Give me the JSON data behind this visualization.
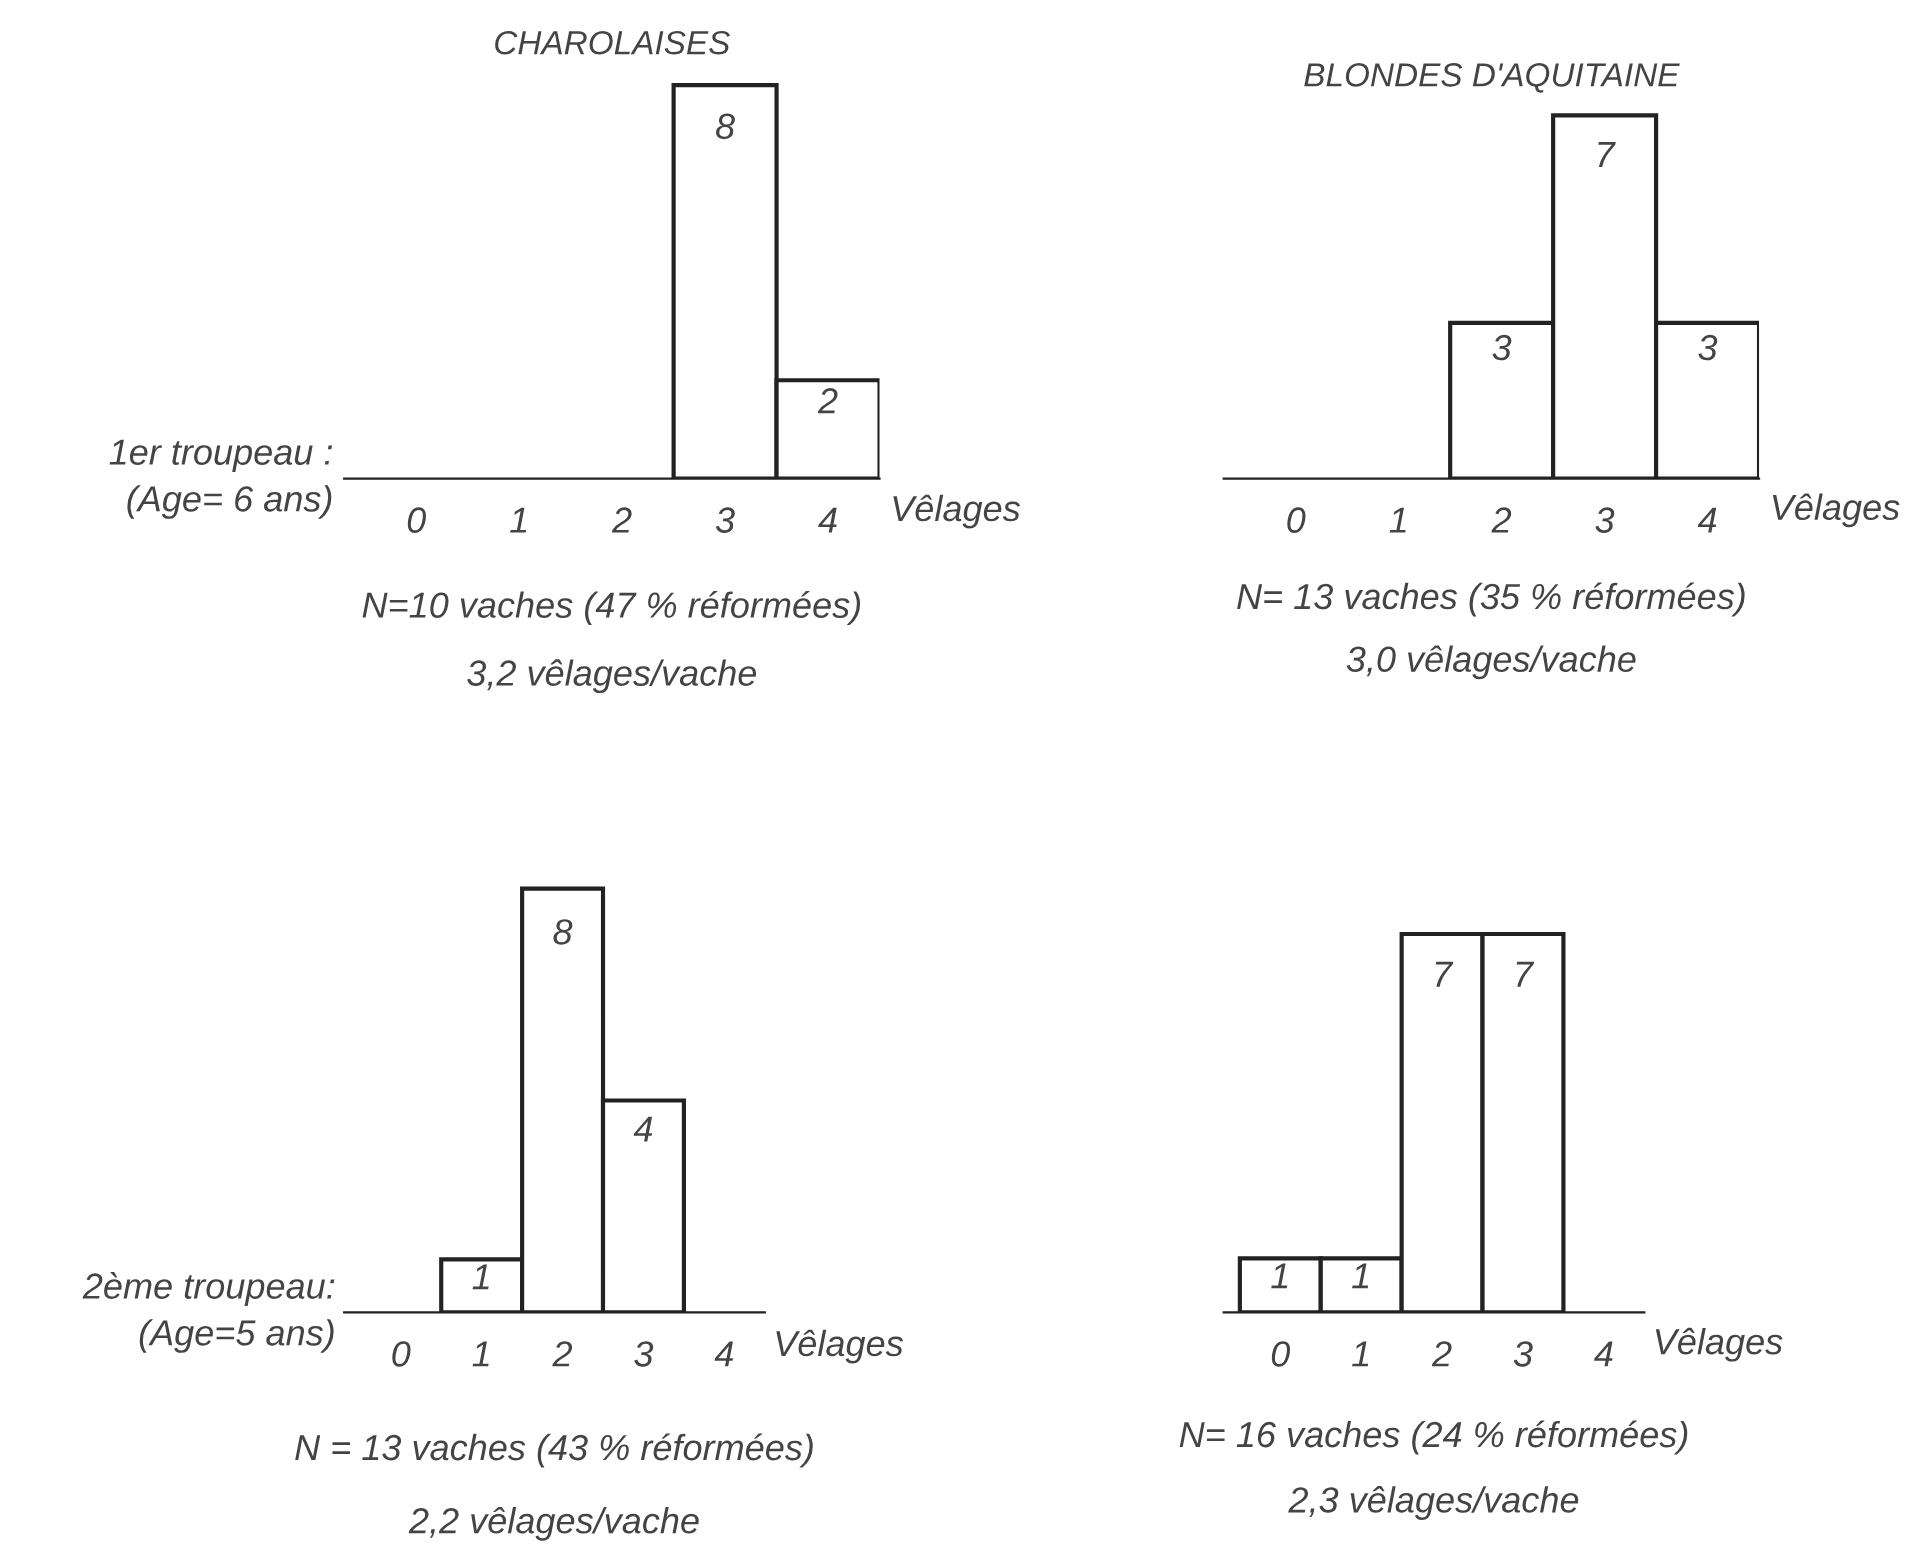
{
  "chart_data": [
    {
      "type": "bar",
      "title": "CHAROLAISES",
      "xlabel": "Vêlages",
      "ylabel": "1er troupeau :\n(Age= 6 ans)",
      "categories": [
        "0",
        "1",
        "2",
        "3",
        "4"
      ],
      "values": [
        0,
        0,
        0,
        8,
        2
      ],
      "value_labels": [
        null,
        null,
        null,
        "8",
        "2"
      ],
      "color": "#ffffff",
      "tick_labels": "x",
      "grid": false,
      "legend": false,
      "annotations": [
        "N=10 vaches (47 % réformées)",
        "3,2 vêlages/vache"
      ]
    },
    {
      "type": "bar",
      "title": "BLONDES D'AQUITAINE",
      "xlabel": "Vêlages",
      "categories": [
        "0",
        "1",
        "2",
        "3",
        "4"
      ],
      "values": [
        0,
        0,
        3,
        7,
        3
      ],
      "value_labels": [
        null,
        null,
        "3",
        "7",
        "3"
      ],
      "color": "#ffffff",
      "tick_labels": "x",
      "grid": false,
      "legend": false,
      "annotations": [
        "N= 13 vaches (35 % réformées)",
        "3,0 vêlages/vache"
      ]
    },
    {
      "type": "bar",
      "xlabel": "Vêlages",
      "ylabel": "2ème troupeau:\n(Age=5 ans)",
      "categories": [
        "0",
        "1",
        "2",
        "3",
        "4"
      ],
      "values": [
        0,
        1,
        8,
        4,
        0
      ],
      "value_labels": [
        null,
        "1",
        "8",
        "4",
        null
      ],
      "color": "#ffffff",
      "tick_labels": "x",
      "grid": false,
      "legend": false,
      "annotations": [
        "N = 13 vaches (43 % réformées)",
        "2,2 vêlages/vache"
      ]
    },
    {
      "type": "bar",
      "xlabel": "Vêlages",
      "categories": [
        "0",
        "1",
        "2",
        "3",
        "4"
      ],
      "values": [
        1,
        1,
        7,
        7,
        0
      ],
      "value_labels": [
        "1",
        "1",
        "7",
        "7",
        null
      ],
      "color": "#ffffff",
      "tick_labels": "x",
      "grid": false,
      "legend": false,
      "annotations": [
        "N= 16 vaches (24 % réformées)",
        "2,3 vêlages/vache"
      ]
    }
  ]
}
